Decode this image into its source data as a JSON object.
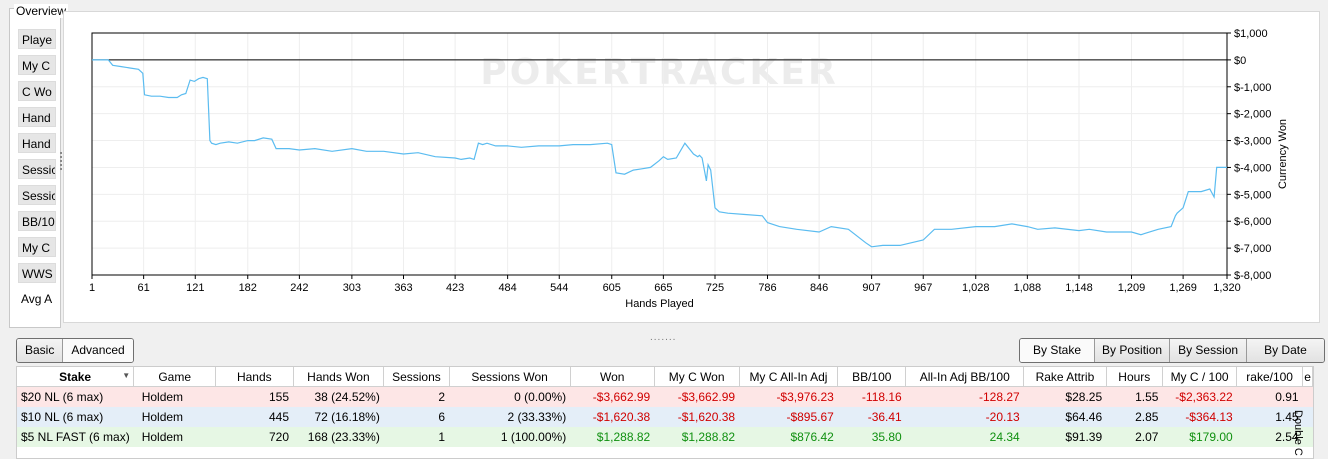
{
  "overview": {
    "title": "Overview",
    "items": [
      "Playe",
      "My C",
      "C Wo",
      "Hand",
      "Hand",
      "Sessic",
      "Sessic",
      "BB/10",
      "My C",
      "WWS",
      "Avg A"
    ]
  },
  "chart_data": {
    "type": "line",
    "watermark": "POKERTRACKER",
    "xlabel": "Hands Played",
    "ylabel": "Currency Won",
    "x_ticks": [
      "1",
      "61",
      "121",
      "182",
      "242",
      "303",
      "363",
      "423",
      "484",
      "544",
      "605",
      "665",
      "725",
      "786",
      "846",
      "907",
      "967",
      "1,028",
      "1,088",
      "1,148",
      "1,209",
      "1,269",
      "1,320"
    ],
    "y_ticks": [
      "$1,000",
      "$0",
      "$-1,000",
      "$-2,000",
      "$-3,000",
      "$-4,000",
      "$-5,000",
      "$-6,000",
      "$-7,000",
      "$-8,000"
    ],
    "xlim": [
      1,
      1320
    ],
    "ylim": [
      -8000,
      1000
    ],
    "series": [
      {
        "color": "#5bbcf0",
        "x": [
          1,
          20,
          25,
          35,
          45,
          55,
          60,
          62,
          70,
          80,
          90,
          100,
          105,
          110,
          115,
          120,
          125,
          130,
          135,
          138,
          140,
          145,
          150,
          160,
          170,
          182,
          190,
          200,
          210,
          215,
          230,
          242,
          260,
          280,
          303,
          320,
          340,
          363,
          380,
          400,
          423,
          430,
          440,
          445,
          450,
          455,
          460,
          470,
          484,
          500,
          520,
          544,
          560,
          580,
          600,
          605,
          610,
          620,
          630,
          640,
          650,
          660,
          665,
          670,
          680,
          690,
          700,
          705,
          707,
          710,
          715,
          717,
          720,
          725,
          730,
          740,
          760,
          780,
          786,
          800,
          820,
          846,
          860,
          880,
          900,
          907,
          920,
          940,
          967,
          980,
          1000,
          1028,
          1050,
          1070,
          1088,
          1100,
          1120,
          1148,
          1160,
          1180,
          1209,
          1220,
          1240,
          1255,
          1260,
          1262,
          1269,
          1275,
          1290,
          1300,
          1305,
          1308,
          1315,
          1320
        ],
        "y": [
          0,
          0,
          -200,
          -250,
          -300,
          -350,
          -500,
          -1300,
          -1350,
          -1350,
          -1400,
          -1400,
          -1300,
          -1250,
          -750,
          -800,
          -700,
          -650,
          -700,
          -3000,
          -3100,
          -3150,
          -3100,
          -3050,
          -3100,
          -3000,
          -3000,
          -2900,
          -2950,
          -3300,
          -3300,
          -3350,
          -3300,
          -3400,
          -3300,
          -3400,
          -3400,
          -3500,
          -3450,
          -3600,
          -3650,
          -3700,
          -3650,
          -3700,
          -3100,
          -3150,
          -3100,
          -3200,
          -3200,
          -3250,
          -3200,
          -3200,
          -3150,
          -3150,
          -3100,
          -3150,
          -4200,
          -4250,
          -4100,
          -4050,
          -4000,
          -3750,
          -3600,
          -3700,
          -3650,
          -3100,
          -3500,
          -3600,
          -3550,
          -3650,
          -4500,
          -3900,
          -4100,
          -5500,
          -5650,
          -5700,
          -5750,
          -5800,
          -6050,
          -6200,
          -6300,
          -6400,
          -6200,
          -6300,
          -6800,
          -6950,
          -6900,
          -6900,
          -6700,
          -6300,
          -6300,
          -6200,
          -6200,
          -6100,
          -6200,
          -6300,
          -6250,
          -6350,
          -6300,
          -6400,
          -6400,
          -6500,
          -6300,
          -6200,
          -5800,
          -5700,
          -5500,
          -4900,
          -4900,
          -4800,
          -5100,
          -4000,
          -4000,
          -4000
        ]
      }
    ]
  },
  "tabs_left": [
    "Basic",
    "Advanced"
  ],
  "tabs_right": [
    "By Stake",
    "By Position",
    "By Session",
    "By Date"
  ],
  "table": {
    "columns": [
      "Stake",
      "Game",
      "Hands",
      "Hands Won",
      "Sessions",
      "Sessions Won",
      "Won",
      "My C Won",
      "My C All-In Adj",
      "BB/100",
      "All-In Adj BB/100",
      "Rake Attrib",
      "Hours",
      "My C / 100",
      "rake/100",
      "e"
    ],
    "rows": [
      [
        "$20 NL (6 max)",
        "Holdem",
        "155",
        "38 (24.52%)",
        "2",
        "0 (0.00%)",
        "-$3,662.99",
        "-$3,662.99",
        "-$3,976.23",
        "-118.16",
        "-128.27",
        "$28.25",
        "1.55",
        "-$2,363.22",
        "0.91"
      ],
      [
        "$10 NL (6 max)",
        "Holdem",
        "445",
        "72 (16.18%)",
        "6",
        "2 (33.33%)",
        "-$1,620.38",
        "-$1,620.38",
        "-$895.67",
        "-36.41",
        "-20.13",
        "$64.46",
        "2.85",
        "-$364.13",
        "1.45"
      ],
      [
        "$5 NL FAST (6 max)",
        "Holdem",
        "720",
        "168 (23.33%)",
        "1",
        "1 (100.00%)",
        "$1,288.82",
        "$1,288.82",
        "$876.42",
        "35.80",
        "24.34",
        "$91.39",
        "2.07",
        "$179.00",
        "2.54"
      ]
    ]
  },
  "side_label": "Double C"
}
